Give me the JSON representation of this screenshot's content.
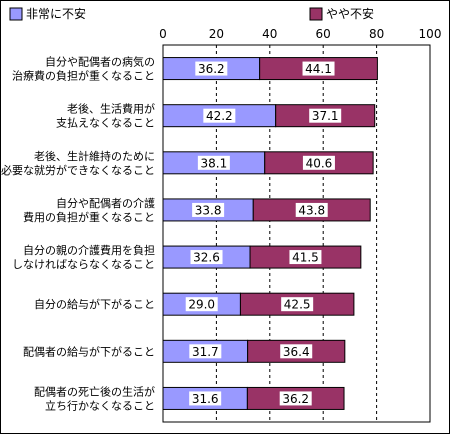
{
  "chart_data": {
    "type": "bar",
    "stacked": true,
    "orientation": "horizontal",
    "title": "",
    "xlabel": "",
    "ylabel": "",
    "xlim": [
      0,
      100
    ],
    "x_ticks": [
      "0",
      "20",
      "40",
      "60",
      "80",
      "100"
    ],
    "grid": true,
    "legend_position": "top",
    "categories": [
      [
        "自分や配偶者の病気の",
        "治療費の負担が重くなること"
      ],
      [
        "老後、生活費用が",
        "支払えなくなること"
      ],
      [
        "老後、生計維持のために",
        "必要な就労ができなくなること"
      ],
      [
        "自分や配偶者の介護",
        "費用の負担が重くなること"
      ],
      [
        "自分の親の介護費用を負担",
        "しなければならなくなること"
      ],
      [
        "自分の給与が下がること"
      ],
      [
        "配偶者の給与が下がること"
      ],
      [
        "配偶者の死亡後の生活が",
        "立ち行かなくなること"
      ]
    ],
    "series": [
      {
        "name": "非常に不安",
        "color": "#9999ff",
        "values": [
          36.2,
          42.2,
          38.1,
          33.8,
          32.6,
          29.0,
          31.7,
          31.6
        ],
        "labels": [
          "36.2",
          "42.2",
          "38.1",
          "33.8",
          "32.6",
          "29.0",
          "31.7",
          "31.6"
        ]
      },
      {
        "name": "やや不安",
        "color": "#993366",
        "values": [
          44.1,
          37.1,
          40.6,
          43.8,
          41.5,
          42.5,
          36.4,
          36.2
        ],
        "labels": [
          "44.1",
          "37.1",
          "40.6",
          "43.8",
          "41.5",
          "42.5",
          "36.4",
          "36.2"
        ]
      }
    ]
  }
}
